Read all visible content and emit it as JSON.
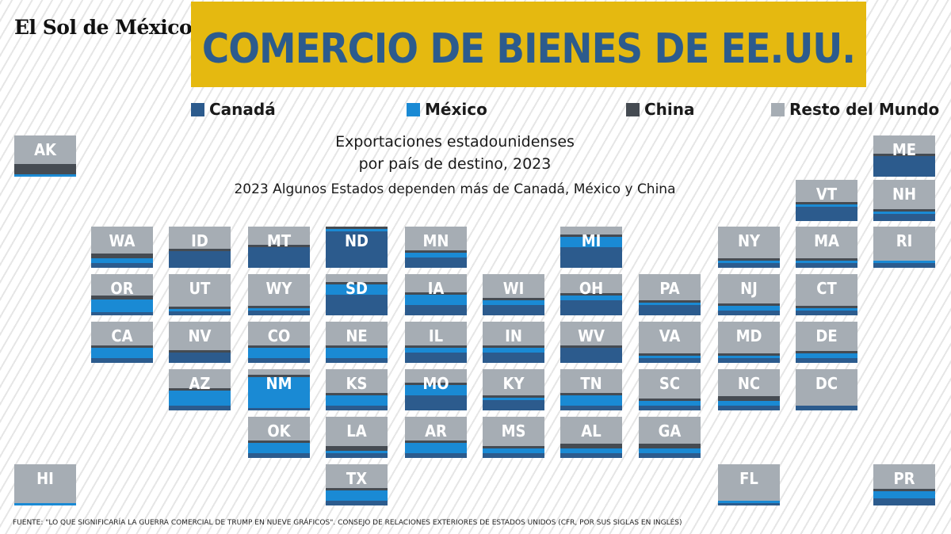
{
  "header": {
    "logo": "El Sol de México",
    "title": "COMERCIO DE BIENES DE EE.UU."
  },
  "legend": [
    {
      "label": "Canadá",
      "color": "#2c5b8d"
    },
    {
      "label": "México",
      "color": "#1a8ad4"
    },
    {
      "label": "China",
      "color": "#454b52"
    },
    {
      "label": "Resto del Mundo",
      "color": "#a6adb4"
    }
  ],
  "subtitle_line1": "Exportaciones estadounidenses",
  "subtitle_line2": "por país de destino, 2023",
  "subtitle_line3": "2023 Algunos Estados dependen más de Canadá, México y China",
  "source": "FUENTE: \"LO QUE SIGNIFICARÍA LA GUERRA COMERCIAL DE TRUMP EN NUEVE GRÁFICOS\". CONSEJO DE RELACIONES EXTERIORES DE ESTADOS UNIDOS (CFR, POR SUS SIGLAS EN INGLÉS)",
  "chart_data": {
    "type": "tile_map_stacked",
    "series": [
      "Canadá",
      "México",
      "China",
      "Resto del Mundo"
    ],
    "colors": {
      "Canadá": "#2c5b8d",
      "México": "#1a8ad4",
      "China": "#454b52",
      "Resto del Mundo": "#a6adb4"
    },
    "states": [
      {
        "state": "AK",
        "col": 0,
        "row": 0,
        "canada": 0,
        "mexico": 6,
        "china": 25
      },
      {
        "state": "ME",
        "col": 11,
        "row": 0,
        "canada": 50,
        "mexico": 0,
        "china": 6
      },
      {
        "state": "VT",
        "col": 10,
        "row": 1,
        "canada": 34,
        "mexico": 6,
        "china": 6
      },
      {
        "state": "NH",
        "col": 11,
        "row": 1,
        "canada": 17,
        "mexico": 6,
        "china": 6
      },
      {
        "state": "WA",
        "col": 1,
        "row": 2,
        "canada": 12,
        "mexico": 12,
        "china": 12
      },
      {
        "state": "ID",
        "col": 2,
        "row": 2,
        "canada": 40,
        "mexico": 0,
        "china": 6
      },
      {
        "state": "MT",
        "col": 3,
        "row": 2,
        "canada": 50,
        "mexico": 0,
        "china": 6
      },
      {
        "state": "ND",
        "col": 4,
        "row": 2,
        "canada": 88,
        "mexico": 6,
        "china": 6
      },
      {
        "state": "MN",
        "col": 5,
        "row": 2,
        "canada": 25,
        "mexico": 12,
        "china": 6
      },
      {
        "state": "MI",
        "col": 7,
        "row": 2,
        "canada": 50,
        "mexico": 25,
        "china": 6
      },
      {
        "state": "NY",
        "col": 9,
        "row": 2,
        "canada": 12,
        "mexico": 6,
        "china": 6
      },
      {
        "state": "MA",
        "col": 10,
        "row": 2,
        "canada": 12,
        "mexico": 6,
        "china": 6
      },
      {
        "state": "RI",
        "col": 11,
        "row": 2,
        "canada": 12,
        "mexico": 6,
        "china": 0
      },
      {
        "state": "OR",
        "col": 1,
        "row": 3,
        "canada": 8,
        "mexico": 30,
        "china": 10
      },
      {
        "state": "UT",
        "col": 2,
        "row": 3,
        "canada": 10,
        "mexico": 6,
        "china": 6
      },
      {
        "state": "WY",
        "col": 3,
        "row": 3,
        "canada": 12,
        "mexico": 6,
        "china": 6
      },
      {
        "state": "SD",
        "col": 4,
        "row": 3,
        "canada": 50,
        "mexico": 25,
        "china": 6
      },
      {
        "state": "IA",
        "col": 5,
        "row": 3,
        "canada": 25,
        "mexico": 25,
        "china": 6
      },
      {
        "state": "WI",
        "col": 6,
        "row": 3,
        "canada": 25,
        "mexico": 12,
        "china": 6
      },
      {
        "state": "OH",
        "col": 7,
        "row": 3,
        "canada": 37,
        "mexico": 12,
        "china": 6
      },
      {
        "state": "PA",
        "col": 8,
        "row": 3,
        "canada": 25,
        "mexico": 6,
        "china": 6
      },
      {
        "state": "NJ",
        "col": 9,
        "row": 3,
        "canada": 12,
        "mexico": 12,
        "china": 6
      },
      {
        "state": "CT",
        "col": 10,
        "row": 3,
        "canada": 12,
        "mexico": 6,
        "china": 6
      },
      {
        "state": "CA",
        "col": 1,
        "row": 4,
        "canada": 12,
        "mexico": 25,
        "china": 6
      },
      {
        "state": "NV",
        "col": 2,
        "row": 4,
        "canada": 25,
        "mexico": 0,
        "china": 6
      },
      {
        "state": "CO",
        "col": 3,
        "row": 4,
        "canada": 12,
        "mexico": 25,
        "china": 6
      },
      {
        "state": "NE",
        "col": 4,
        "row": 4,
        "canada": 12,
        "mexico": 25,
        "china": 6
      },
      {
        "state": "IL",
        "col": 5,
        "row": 4,
        "canada": 25,
        "mexico": 12,
        "china": 6
      },
      {
        "state": "IN",
        "col": 6,
        "row": 4,
        "canada": 25,
        "mexico": 12,
        "china": 6
      },
      {
        "state": "WV",
        "col": 7,
        "row": 4,
        "canada": 37,
        "mexico": 0,
        "china": 6
      },
      {
        "state": "VA",
        "col": 8,
        "row": 4,
        "canada": 12,
        "mexico": 6,
        "china": 6
      },
      {
        "state": "MD",
        "col": 9,
        "row": 4,
        "canada": 12,
        "mexico": 6,
        "china": 6
      },
      {
        "state": "DE",
        "col": 10,
        "row": 4,
        "canada": 12,
        "mexico": 12,
        "china": 6
      },
      {
        "state": "AZ",
        "col": 2,
        "row": 5,
        "canada": 12,
        "mexico": 37,
        "china": 6
      },
      {
        "state": "NM",
        "col": 3,
        "row": 5,
        "canada": 6,
        "mexico": 75,
        "china": 6
      },
      {
        "state": "KS",
        "col": 4,
        "row": 5,
        "canada": 12,
        "mexico": 25,
        "china": 6
      },
      {
        "state": "MO",
        "col": 5,
        "row": 5,
        "canada": 37,
        "mexico": 25,
        "china": 6
      },
      {
        "state": "KY",
        "col": 6,
        "row": 5,
        "canada": 25,
        "mexico": 6,
        "china": 6
      },
      {
        "state": "TN",
        "col": 7,
        "row": 5,
        "canada": 12,
        "mexico": 25,
        "china": 6
      },
      {
        "state": "SC",
        "col": 8,
        "row": 5,
        "canada": 12,
        "mexico": 12,
        "china": 6
      },
      {
        "state": "NC",
        "col": 9,
        "row": 5,
        "canada": 12,
        "mexico": 12,
        "china": 12
      },
      {
        "state": "DC",
        "col": 10,
        "row": 5,
        "canada": 12,
        "mexico": 0,
        "china": 0
      },
      {
        "state": "OK",
        "col": 3,
        "row": 6,
        "canada": 12,
        "mexico": 25,
        "china": 6
      },
      {
        "state": "LA",
        "col": 4,
        "row": 6,
        "canada": 12,
        "mexico": 6,
        "china": 12
      },
      {
        "state": "AR",
        "col": 5,
        "row": 6,
        "canada": 12,
        "mexico": 25,
        "china": 6
      },
      {
        "state": "MS",
        "col": 6,
        "row": 6,
        "canada": 12,
        "mexico": 12,
        "china": 6
      },
      {
        "state": "AL",
        "col": 7,
        "row": 6,
        "canada": 12,
        "mexico": 12,
        "china": 12
      },
      {
        "state": "GA",
        "col": 8,
        "row": 6,
        "canada": 12,
        "mexico": 12,
        "china": 12
      },
      {
        "state": "HI",
        "col": 0,
        "row": 7,
        "canada": 0,
        "mexico": 6,
        "china": 0
      },
      {
        "state": "TX",
        "col": 4,
        "row": 7,
        "canada": 12,
        "mexico": 25,
        "china": 6
      },
      {
        "state": "FL",
        "col": 9,
        "row": 7,
        "canada": 6,
        "mexico": 6,
        "china": 0
      },
      {
        "state": "PR",
        "col": 11,
        "row": 7,
        "canada": 17,
        "mexico": 17,
        "china": 6
      }
    ]
  }
}
